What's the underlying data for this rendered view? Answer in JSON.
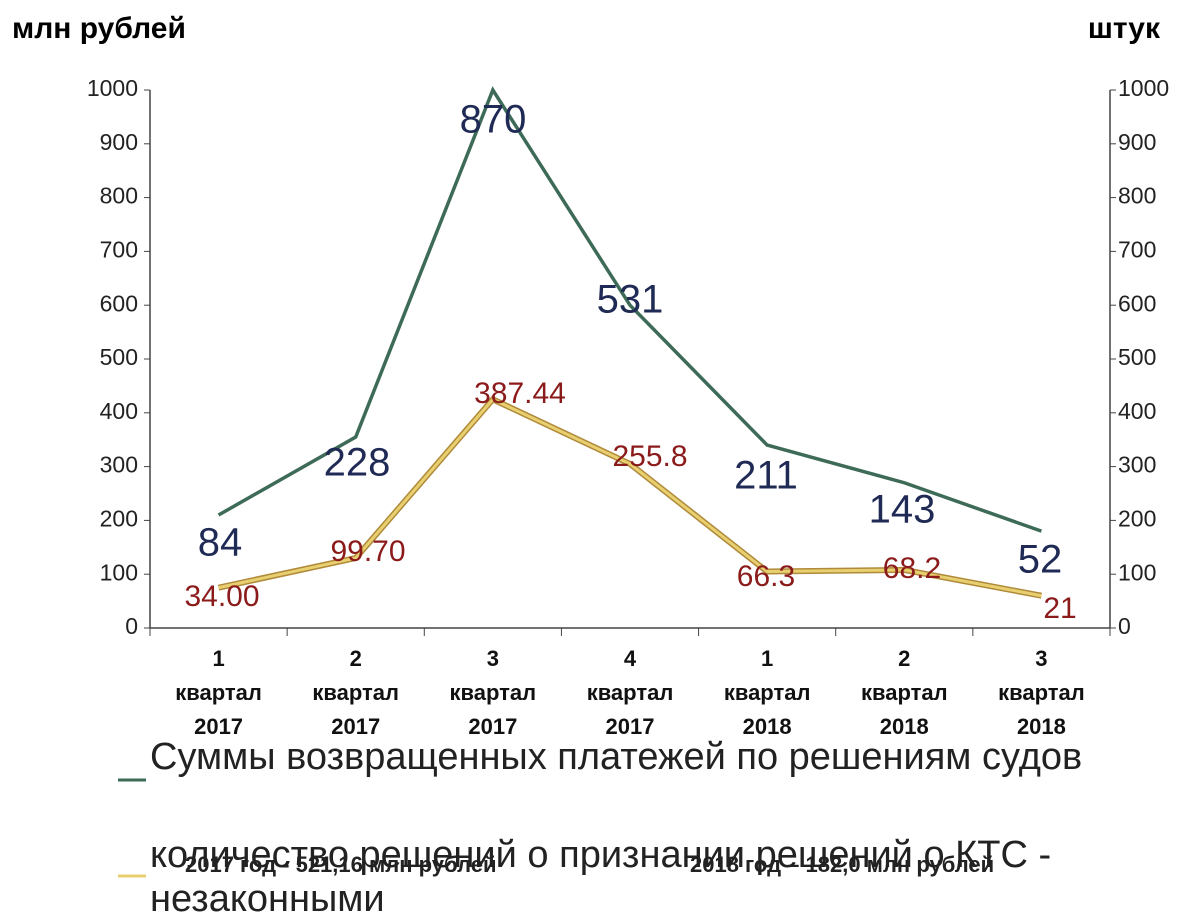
{
  "chart_data": {
    "type": "line",
    "y_label": "млн рублей",
    "y2_label": "штук",
    "categories": [
      [
        "1",
        "квартал",
        "2017"
      ],
      [
        "2",
        "квартал",
        "2017"
      ],
      [
        "3",
        "квартал",
        "2017"
      ],
      [
        "4",
        "квартал",
        "2017"
      ],
      [
        "1",
        "квартал",
        "2018"
      ],
      [
        "2",
        "квартал",
        "2018"
      ],
      [
        "3",
        "квартал",
        "2018"
      ]
    ],
    "series": [
      {
        "name": "Суммы возвращенных платежей по решениям судов",
        "color": "#3e6b58",
        "values": [
          210,
          355,
          1000,
          600,
          340,
          270,
          180
        ]
      },
      {
        "name": "количество решений о признании решений о КТС - незаконными",
        "color": "#e8d070",
        "values": [
          75,
          130,
          425,
          305,
          105,
          108,
          60
        ]
      }
    ],
    "data_labels": [
      {
        "color": "#1f2a55",
        "texts": [
          "84",
          "228",
          "870",
          "531",
          "211",
          "143",
          "52"
        ]
      },
      {
        "color": "#8b1a1a",
        "texts": [
          "34.00",
          "99.70",
          "387.44",
          "255.8",
          "66.3",
          "68.2",
          "21"
        ]
      }
    ],
    "annotations": [
      "2017 год - 521,16 млн рублей",
      "2018 год – 182,0 млн рублей"
    ],
    "ylim": [
      0,
      1000
    ],
    "yticks": [
      0,
      100,
      200,
      300,
      400,
      500,
      600,
      700,
      800,
      900,
      1000
    ],
    "y2lim": [
      0,
      1000
    ],
    "y2ticks": [
      0,
      100,
      200,
      300,
      400,
      500,
      600,
      700,
      800,
      900,
      1000
    ]
  }
}
